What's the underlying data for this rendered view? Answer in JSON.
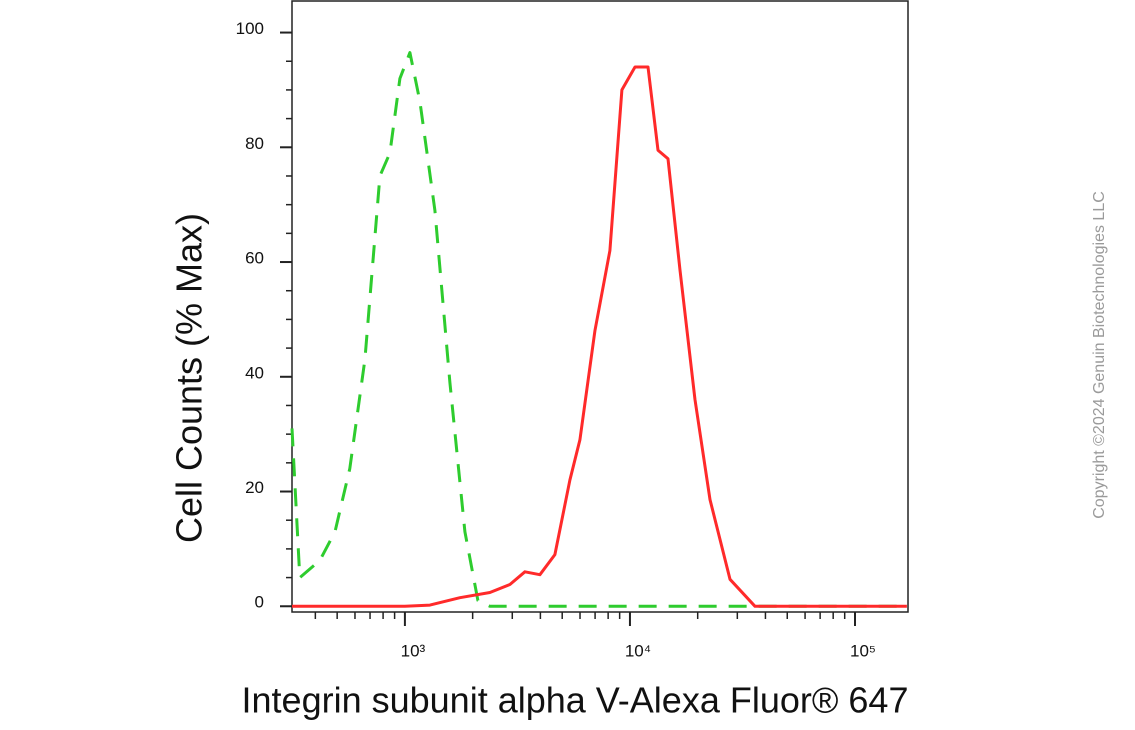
{
  "chart_data": {
    "type": "line",
    "xlabel": "Integrin subunit alpha V-Alexa Fluor® 647",
    "ylabel": "Cell Counts (% Max)",
    "watermark": "Copyright ©2024 Genuin Biotechnologies LLC",
    "xscale": "log",
    "xlim": [
      315,
      172000
    ],
    "ylim": [
      -1,
      105.5
    ],
    "xticks": [
      {
        "value": 1000,
        "label": "10³"
      },
      {
        "value": 10000,
        "label": "10⁴"
      },
      {
        "value": 100000,
        "label": "10⁵"
      }
    ],
    "xminorticks": [
      400,
      500,
      600,
      700,
      800,
      900,
      2000,
      3000,
      4000,
      5000,
      6000,
      7000,
      8000,
      9000,
      20000,
      30000,
      40000,
      50000,
      60000,
      70000,
      80000,
      90000
    ],
    "yticks": [
      0,
      20,
      40,
      60,
      80,
      100
    ],
    "yminorticks": [
      5,
      10,
      15,
      25,
      30,
      35,
      45,
      50,
      55,
      65,
      70,
      75,
      85,
      90,
      95
    ],
    "series": [
      {
        "color": "#2ecc2e",
        "dashed": true,
        "x": [
          315,
          341,
          419,
          489,
          569,
          664,
          774,
          858,
          950,
          1052,
          1166,
          1359,
          1585,
          1848,
          2111,
          2387,
          170000
        ],
        "values": [
          31,
          5,
          8,
          13,
          24,
          43,
          75,
          79,
          92,
          96.5,
          88,
          69,
          39,
          13,
          1,
          0,
          0
        ]
      },
      {
        "color": "#ff2a2a",
        "dashed": false,
        "x": [
          315,
          1000,
          1292,
          1756,
          2387,
          2929,
          3415,
          3981,
          4642,
          5412,
          5995,
          6988,
          8147,
          9214,
          10525,
          12023,
          13318,
          14757,
          16681,
          19448,
          22675,
          27826,
          35938,
          170000
        ],
        "values": [
          0,
          0,
          0.2,
          1.5,
          2.4,
          3.8,
          6,
          5.5,
          9,
          22,
          29,
          48,
          62,
          90,
          94,
          94,
          79.5,
          78,
          58.6,
          36,
          18.6,
          4.7,
          0,
          0
        ]
      }
    ]
  }
}
